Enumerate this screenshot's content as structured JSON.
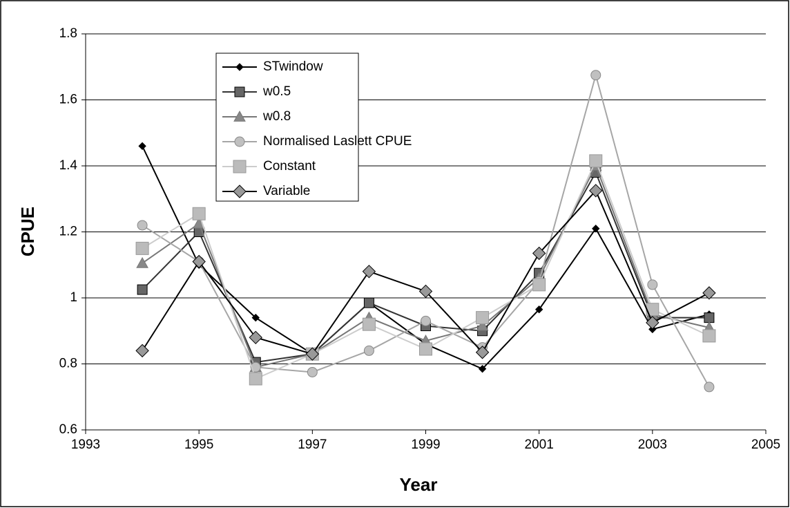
{
  "chart_data": {
    "type": "line",
    "x_label": "Year",
    "y_label": "CPUE",
    "x": [
      1994,
      1995,
      1996,
      1997,
      1998,
      1999,
      2000,
      2001,
      2002,
      2003,
      2004
    ],
    "xlim": [
      1993,
      2005
    ],
    "xticks": [
      1993,
      1995,
      1997,
      1999,
      2001,
      2003,
      2005
    ],
    "ylim": [
      0.6,
      1.8
    ],
    "yticks": [
      0.6,
      0.8,
      1,
      1.2,
      1.4,
      1.6,
      1.8
    ],
    "grid": true,
    "legend": "upper left",
    "series": [
      {
        "name": "STwindow",
        "color": "#000000",
        "marker": "diamond",
        "marker_color": "#000000",
        "marker_size": 5,
        "values": [
          1.46,
          1.1,
          0.94,
          0.83,
          0.985,
          0.86,
          0.785,
          0.965,
          1.21,
          0.905,
          0.95
        ]
      },
      {
        "name": "w0.5",
        "color": "#333333",
        "marker": "square",
        "marker_color": "#666666",
        "marker_size": 7,
        "values": [
          1.025,
          1.2,
          0.805,
          0.83,
          0.985,
          0.915,
          0.9,
          1.075,
          1.38,
          0.94,
          0.94
        ]
      },
      {
        "name": "w0.8",
        "color": "#777777",
        "marker": "triangle",
        "marker_color": "#888888",
        "marker_size": 8,
        "values": [
          1.105,
          1.225,
          0.79,
          0.83,
          0.94,
          0.87,
          0.915,
          1.06,
          1.4,
          0.95,
          0.91
        ]
      },
      {
        "name": "Normalised Laslett CPUE",
        "color": "#a6a6a6",
        "marker": "circle",
        "marker_color": "#c0c0c0",
        "marker_size": 7,
        "values": [
          1.22,
          1.11,
          0.79,
          0.775,
          0.84,
          0.93,
          0.85,
          1.05,
          1.675,
          1.04,
          0.73
        ]
      },
      {
        "name": "Constant",
        "color": "#cccccc",
        "marker": "square",
        "marker_color": "#bbbbbb",
        "marker_size": 9,
        "values": [
          1.15,
          1.255,
          0.755,
          0.83,
          0.92,
          0.845,
          0.94,
          1.04,
          1.415,
          0.965,
          0.885
        ]
      },
      {
        "name": "Variable",
        "color": "#000000",
        "marker": "diamond",
        "marker_color": "#999999",
        "marker_size": 9,
        "values": [
          0.84,
          1.11,
          0.88,
          0.83,
          1.08,
          1.02,
          0.835,
          1.135,
          1.325,
          0.925,
          1.015
        ]
      }
    ]
  }
}
